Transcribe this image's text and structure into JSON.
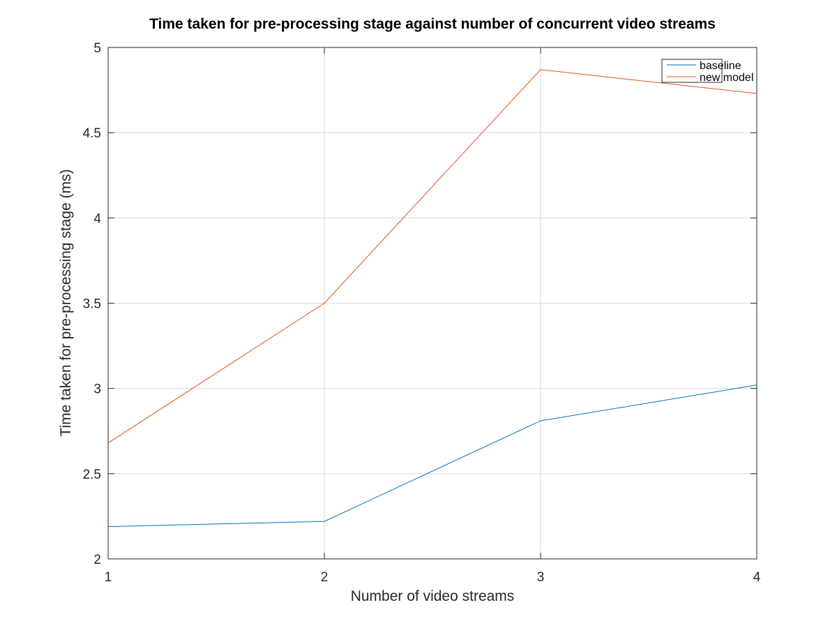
{
  "chart_data": {
    "type": "line",
    "title": "Time taken for pre-processing stage against number of concurrent video streams",
    "xlabel": "Number of video streams",
    "ylabel": "Time taken for pre-processing stage (ms)",
    "x": [
      1,
      2,
      3,
      4
    ],
    "xlim": [
      1,
      4
    ],
    "ylim": [
      2,
      5
    ],
    "xticks": [
      1,
      2,
      3,
      4
    ],
    "yticks": [
      2,
      2.5,
      3,
      3.5,
      4,
      4.5,
      5
    ],
    "xtick_labels": [
      "1",
      "2",
      "3",
      "4"
    ],
    "ytick_labels": [
      "2",
      "2.5",
      "3",
      "3.5",
      "4",
      "4.5",
      "5"
    ],
    "grid": true,
    "legend_position": "top-right",
    "series": [
      {
        "name": "baseline",
        "color": "#0072bd",
        "values": [
          2.19,
          2.22,
          2.81,
          3.02
        ]
      },
      {
        "name": "new model",
        "color": "#d95319",
        "values": [
          2.68,
          3.5,
          4.87,
          4.73
        ]
      }
    ]
  }
}
